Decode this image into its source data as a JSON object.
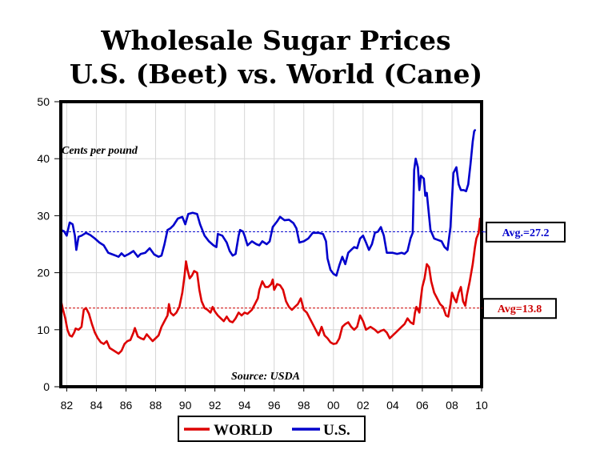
{
  "chart_data": {
    "type": "line",
    "title_line1": "Wholesale Sugar Prices",
    "title_line2": "U.S. (Beet) vs. World (Cane)",
    "units_label": "Cents per pound",
    "source": "Source: USDA",
    "xlim": [
      1981.6,
      2010
    ],
    "ylim": [
      0,
      50
    ],
    "x_ticks": [
      1982,
      1984,
      1986,
      1988,
      1990,
      1992,
      1994,
      1996,
      1998,
      2000,
      2002,
      2004,
      2006,
      2008,
      2010
    ],
    "x_tick_labels": [
      "82",
      "84",
      "86",
      "88",
      "90",
      "92",
      "94",
      "96",
      "98",
      "00",
      "02",
      "04",
      "06",
      "08",
      "10"
    ],
    "y_ticks": [
      0,
      10,
      20,
      30,
      40,
      50
    ],
    "y_tick_labels": [
      "0",
      "10",
      "20",
      "30",
      "40",
      "50"
    ],
    "averages": [
      {
        "series": "U.S.",
        "value": 27.2,
        "label": "Avg.=27.2",
        "color": "#0000cc"
      },
      {
        "series": "WORLD",
        "value": 13.8,
        "label": "Avg=13.8",
        "color": "#cc0000"
      }
    ],
    "series": [
      {
        "name": "U.S.",
        "legend_label": "U.S.",
        "color": "#0000cc",
        "points": [
          [
            1981.6,
            27.5
          ],
          [
            1981.8,
            27.3
          ],
          [
            1982.0,
            26.5
          ],
          [
            1982.2,
            28.8
          ],
          [
            1982.4,
            28.5
          ],
          [
            1982.55,
            26.5
          ],
          [
            1982.65,
            24.0
          ],
          [
            1982.8,
            26.3
          ],
          [
            1983.0,
            26.5
          ],
          [
            1983.3,
            27.0
          ],
          [
            1983.6,
            26.6
          ],
          [
            1983.9,
            26.0
          ],
          [
            1984.2,
            25.3
          ],
          [
            1984.5,
            24.8
          ],
          [
            1984.8,
            23.5
          ],
          [
            1985.0,
            23.3
          ],
          [
            1985.3,
            23.0
          ],
          [
            1985.5,
            22.8
          ],
          [
            1985.7,
            23.4
          ],
          [
            1985.9,
            22.9
          ],
          [
            1986.2,
            23.3
          ],
          [
            1986.5,
            23.8
          ],
          [
            1986.8,
            22.8
          ],
          [
            1987.0,
            23.3
          ],
          [
            1987.3,
            23.5
          ],
          [
            1987.6,
            24.3
          ],
          [
            1987.9,
            23.2
          ],
          [
            1988.2,
            22.8
          ],
          [
            1988.4,
            23.0
          ],
          [
            1988.6,
            25.0
          ],
          [
            1988.8,
            27.5
          ],
          [
            1989.0,
            27.8
          ],
          [
            1989.2,
            28.3
          ],
          [
            1989.5,
            29.5
          ],
          [
            1989.8,
            29.8
          ],
          [
            1990.0,
            28.5
          ],
          [
            1990.2,
            30.3
          ],
          [
            1990.5,
            30.5
          ],
          [
            1990.8,
            30.3
          ],
          [
            1991.0,
            28.5
          ],
          [
            1991.3,
            26.5
          ],
          [
            1991.6,
            25.5
          ],
          [
            1991.9,
            24.8
          ],
          [
            1992.1,
            24.5
          ],
          [
            1992.2,
            26.8
          ],
          [
            1992.5,
            26.5
          ],
          [
            1992.8,
            25.3
          ],
          [
            1993.0,
            23.8
          ],
          [
            1993.2,
            23.0
          ],
          [
            1993.4,
            23.3
          ],
          [
            1993.6,
            26.5
          ],
          [
            1993.7,
            27.5
          ],
          [
            1993.9,
            27.2
          ],
          [
            1994.0,
            26.5
          ],
          [
            1994.2,
            24.8
          ],
          [
            1994.5,
            25.5
          ],
          [
            1994.8,
            25.0
          ],
          [
            1995.0,
            24.8
          ],
          [
            1995.2,
            25.5
          ],
          [
            1995.5,
            25.0
          ],
          [
            1995.7,
            25.5
          ],
          [
            1995.9,
            28.0
          ],
          [
            1996.2,
            29.0
          ],
          [
            1996.4,
            29.8
          ],
          [
            1996.7,
            29.2
          ],
          [
            1997.0,
            29.3
          ],
          [
            1997.3,
            28.7
          ],
          [
            1997.5,
            27.8
          ],
          [
            1997.7,
            25.3
          ],
          [
            1998.0,
            25.5
          ],
          [
            1998.3,
            26.0
          ],
          [
            1998.6,
            27.0
          ],
          [
            1999.0,
            27.0
          ],
          [
            1999.3,
            26.8
          ],
          [
            1999.5,
            25.5
          ],
          [
            1999.6,
            22.5
          ],
          [
            1999.8,
            20.5
          ],
          [
            2000.0,
            19.8
          ],
          [
            2000.2,
            19.5
          ],
          [
            2000.4,
            21.3
          ],
          [
            2000.6,
            22.8
          ],
          [
            2000.8,
            21.5
          ],
          [
            2001.0,
            23.5
          ],
          [
            2001.2,
            24.0
          ],
          [
            2001.4,
            24.5
          ],
          [
            2001.6,
            24.3
          ],
          [
            2001.8,
            26.0
          ],
          [
            2002.0,
            26.5
          ],
          [
            2002.2,
            25.3
          ],
          [
            2002.4,
            24.0
          ],
          [
            2002.6,
            25.0
          ],
          [
            2002.8,
            27.0
          ],
          [
            2003.0,
            27.2
          ],
          [
            2003.2,
            28.0
          ],
          [
            2003.4,
            26.5
          ],
          [
            2003.6,
            23.5
          ],
          [
            2003.8,
            23.5
          ],
          [
            2004.0,
            23.5
          ],
          [
            2004.3,
            23.3
          ],
          [
            2004.6,
            23.5
          ],
          [
            2004.8,
            23.3
          ],
          [
            2005.0,
            23.8
          ],
          [
            2005.2,
            26.0
          ],
          [
            2005.35,
            27.0
          ],
          [
            2005.45,
            38.0
          ],
          [
            2005.55,
            40.0
          ],
          [
            2005.7,
            38.5
          ],
          [
            2005.8,
            34.5
          ],
          [
            2005.9,
            37.0
          ],
          [
            2006.1,
            36.5
          ],
          [
            2006.2,
            33.5
          ],
          [
            2006.3,
            34.0
          ],
          [
            2006.45,
            30.0
          ],
          [
            2006.55,
            27.5
          ],
          [
            2006.8,
            26.0
          ],
          [
            2007.0,
            25.8
          ],
          [
            2007.3,
            25.5
          ],
          [
            2007.5,
            24.5
          ],
          [
            2007.7,
            24.0
          ],
          [
            2007.9,
            28.0
          ],
          [
            2008.0,
            33.0
          ],
          [
            2008.1,
            37.5
          ],
          [
            2008.3,
            38.5
          ],
          [
            2008.45,
            35.5
          ],
          [
            2008.6,
            34.5
          ],
          [
            2008.8,
            34.5
          ],
          [
            2008.95,
            34.3
          ],
          [
            2009.1,
            35.5
          ],
          [
            2009.25,
            39.0
          ],
          [
            2009.4,
            43.0
          ],
          [
            2009.5,
            44.8
          ],
          [
            2009.55,
            45.0
          ]
        ]
      },
      {
        "name": "WORLD",
        "legend_label": "WORLD",
        "color": "#dd0000",
        "points": [
          [
            1981.6,
            15.2
          ],
          [
            1981.75,
            13.5
          ],
          [
            1981.9,
            12.0
          ],
          [
            1982.05,
            10.0
          ],
          [
            1982.2,
            9.0
          ],
          [
            1982.35,
            8.8
          ],
          [
            1982.5,
            9.5
          ],
          [
            1982.6,
            10.2
          ],
          [
            1982.8,
            10.0
          ],
          [
            1983.0,
            10.5
          ],
          [
            1983.15,
            13.5
          ],
          [
            1983.3,
            13.8
          ],
          [
            1983.5,
            12.8
          ],
          [
            1983.7,
            11.0
          ],
          [
            1983.9,
            9.5
          ],
          [
            1984.1,
            8.5
          ],
          [
            1984.3,
            7.8
          ],
          [
            1984.5,
            7.5
          ],
          [
            1984.7,
            8.0
          ],
          [
            1984.9,
            6.8
          ],
          [
            1985.2,
            6.3
          ],
          [
            1985.5,
            5.8
          ],
          [
            1985.7,
            6.3
          ],
          [
            1985.9,
            7.5
          ],
          [
            1986.1,
            8.0
          ],
          [
            1986.3,
            8.2
          ],
          [
            1986.5,
            9.5
          ],
          [
            1986.6,
            10.3
          ],
          [
            1986.8,
            8.8
          ],
          [
            1987.0,
            8.5
          ],
          [
            1987.2,
            8.3
          ],
          [
            1987.4,
            9.2
          ],
          [
            1987.6,
            8.6
          ],
          [
            1987.8,
            8.0
          ],
          [
            1988.0,
            8.5
          ],
          [
            1988.2,
            9.0
          ],
          [
            1988.4,
            10.5
          ],
          [
            1988.6,
            11.5
          ],
          [
            1988.8,
            12.5
          ],
          [
            1988.9,
            14.5
          ],
          [
            1989.0,
            13.0
          ],
          [
            1989.2,
            12.5
          ],
          [
            1989.4,
            13.0
          ],
          [
            1989.6,
            14.0
          ],
          [
            1989.8,
            16.5
          ],
          [
            1989.95,
            19.5
          ],
          [
            1990.05,
            22.0
          ],
          [
            1990.15,
            20.5
          ],
          [
            1990.3,
            19.0
          ],
          [
            1990.45,
            19.5
          ],
          [
            1990.6,
            20.3
          ],
          [
            1990.8,
            20.0
          ],
          [
            1990.95,
            17.0
          ],
          [
            1991.1,
            15.0
          ],
          [
            1991.3,
            13.8
          ],
          [
            1991.5,
            13.5
          ],
          [
            1991.7,
            13.0
          ],
          [
            1991.85,
            14.0
          ],
          [
            1992.0,
            13.2
          ],
          [
            1992.2,
            12.5
          ],
          [
            1992.4,
            12.0
          ],
          [
            1992.6,
            11.5
          ],
          [
            1992.8,
            12.3
          ],
          [
            1993.0,
            11.5
          ],
          [
            1993.2,
            11.3
          ],
          [
            1993.4,
            12.0
          ],
          [
            1993.6,
            13.0
          ],
          [
            1993.8,
            12.5
          ],
          [
            1994.0,
            13.0
          ],
          [
            1994.2,
            12.8
          ],
          [
            1994.5,
            13.5
          ],
          [
            1994.7,
            14.5
          ],
          [
            1994.9,
            15.5
          ],
          [
            1995.0,
            17.0
          ],
          [
            1995.2,
            18.5
          ],
          [
            1995.4,
            17.5
          ],
          [
            1995.6,
            17.5
          ],
          [
            1995.8,
            18.0
          ],
          [
            1995.9,
            18.8
          ],
          [
            1996.0,
            17.0
          ],
          [
            1996.2,
            18.0
          ],
          [
            1996.4,
            17.8
          ],
          [
            1996.6,
            17.0
          ],
          [
            1996.8,
            15.0
          ],
          [
            1997.0,
            14.0
          ],
          [
            1997.2,
            13.5
          ],
          [
            1997.4,
            14.0
          ],
          [
            1997.6,
            14.5
          ],
          [
            1997.8,
            15.5
          ],
          [
            1998.0,
            13.5
          ],
          [
            1998.2,
            13.0
          ],
          [
            1998.4,
            12.0
          ],
          [
            1998.6,
            11.0
          ],
          [
            1998.8,
            10.0
          ],
          [
            1999.0,
            9.0
          ],
          [
            1999.2,
            10.5
          ],
          [
            1999.4,
            9.0
          ],
          [
            1999.6,
            8.5
          ],
          [
            1999.8,
            7.8
          ],
          [
            2000.0,
            7.5
          ],
          [
            2000.2,
            7.6
          ],
          [
            2000.4,
            8.5
          ],
          [
            2000.6,
            10.5
          ],
          [
            2000.8,
            11.0
          ],
          [
            2001.0,
            11.3
          ],
          [
            2001.2,
            10.5
          ],
          [
            2001.4,
            10.0
          ],
          [
            2001.6,
            10.5
          ],
          [
            2001.8,
            12.5
          ],
          [
            2002.0,
            11.5
          ],
          [
            2002.2,
            10.0
          ],
          [
            2002.5,
            10.5
          ],
          [
            2002.8,
            10.0
          ],
          [
            2003.0,
            9.5
          ],
          [
            2003.2,
            9.8
          ],
          [
            2003.4,
            10.0
          ],
          [
            2003.6,
            9.5
          ],
          [
            2003.8,
            8.5
          ],
          [
            2004.0,
            9.0
          ],
          [
            2004.2,
            9.5
          ],
          [
            2004.4,
            10.0
          ],
          [
            2004.6,
            10.5
          ],
          [
            2004.8,
            11.0
          ],
          [
            2005.0,
            12.0
          ],
          [
            2005.2,
            11.3
          ],
          [
            2005.4,
            11.0
          ],
          [
            2005.5,
            13.0
          ],
          [
            2005.6,
            14.0
          ],
          [
            2005.8,
            13.0
          ],
          [
            2005.9,
            15.5
          ],
          [
            2006.0,
            17.5
          ],
          [
            2006.15,
            19.0
          ],
          [
            2006.3,
            21.5
          ],
          [
            2006.45,
            21.0
          ],
          [
            2006.6,
            18.5
          ],
          [
            2006.8,
            16.5
          ],
          [
            2007.0,
            15.5
          ],
          [
            2007.2,
            14.5
          ],
          [
            2007.4,
            14.0
          ],
          [
            2007.6,
            12.5
          ],
          [
            2007.75,
            12.3
          ],
          [
            2007.9,
            14.5
          ],
          [
            2008.0,
            16.5
          ],
          [
            2008.15,
            15.5
          ],
          [
            2008.3,
            14.8
          ],
          [
            2008.45,
            16.5
          ],
          [
            2008.6,
            17.5
          ],
          [
            2008.75,
            15.0
          ],
          [
            2008.9,
            14.2
          ],
          [
            2009.0,
            16.0
          ],
          [
            2009.2,
            18.5
          ],
          [
            2009.4,
            21.5
          ],
          [
            2009.55,
            24.5
          ],
          [
            2009.65,
            26.0
          ],
          [
            2009.8,
            27.0
          ],
          [
            2009.9,
            29.5
          ]
        ]
      }
    ]
  }
}
